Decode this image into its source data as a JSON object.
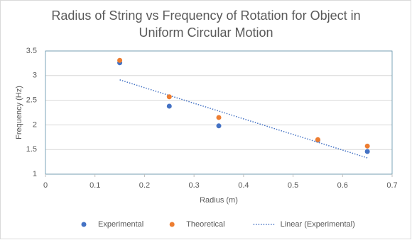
{
  "chart_data": {
    "type": "scatter",
    "title": "Radius of String vs Frequency of Rotation for Object in Uniform Circular Motion",
    "x_label": "Radius (m)",
    "y_label": "Frequency (Hz)",
    "xlim": [
      0,
      0.7
    ],
    "xticks": [
      0,
      0.1,
      0.2,
      0.3,
      0.4,
      0.5,
      0.6,
      0.7
    ],
    "ylim": [
      1,
      3.5
    ],
    "yticks": [
      1,
      1.5,
      2,
      2.5,
      3,
      3.5
    ],
    "grid": true,
    "legend": "bottom",
    "series": [
      {
        "name": "Experimental",
        "color": "#4472c4",
        "x": [
          0.15,
          0.25,
          0.35,
          0.55,
          0.65
        ],
        "values": [
          3.26,
          2.38,
          1.98,
          1.69,
          1.46
        ],
        "trendline": {
          "name": "Linear (Experimental)",
          "type": "linear",
          "style": "dotted"
        }
      },
      {
        "name": "Theoretical",
        "color": "#ed7d31",
        "x": [
          0.15,
          0.25,
          0.35,
          0.55,
          0.65
        ],
        "values": [
          3.31,
          2.57,
          2.15,
          1.7,
          1.57
        ]
      }
    ]
  }
}
